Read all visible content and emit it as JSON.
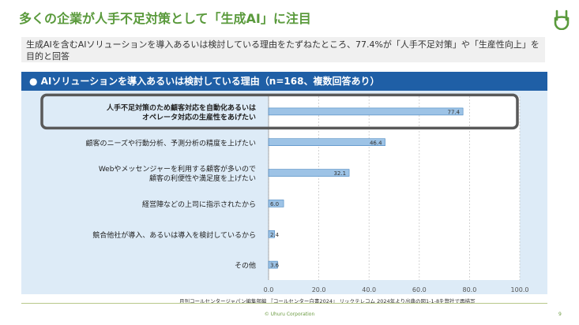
{
  "slide": {
    "title": "多くの企業が人手不足対策として「生成AI」に注目",
    "summary": "生成AIを含むAIソリューションを導入あるいは検討している理由をたずねたところ、77.4%が「人手不足対策」や「生産性向上」を目的と回答",
    "panel_title": "● AIソリューションを導入あるいは検討している理由（n=168、複数回答あり）",
    "source": "月刊コールセンタージャパン編集部編 『コールセンター白書2024』 リックテレコム 2024年より出典の図1-1-8を弊社で再描写",
    "copyright": "© Uhuru Corporation",
    "page_number": "9"
  },
  "chart_data": {
    "type": "bar",
    "orientation": "horizontal",
    "categories": [
      [
        "人手不足対策のため顧客対応を自動化あるいは",
        "オペレータ対応の生産性をあげたい"
      ],
      [
        "顧客のニーズや行動分析、予測分析の精度を上げたい"
      ],
      [
        "Webやメッセンジャーを利用する顧客が多いので",
        "顧客の利便性や満足度を上げたい"
      ],
      [
        "経営陣などの上司に指示されたから"
      ],
      [
        "競合他社が導入、あるいは導入を検討しているから"
      ],
      [
        "その他"
      ]
    ],
    "values": [
      77.4,
      46.4,
      32.1,
      6.0,
      2.4,
      3.6
    ],
    "value_labels": [
      "77.4",
      "46.4",
      "32.1",
      "6.0",
      "2.4",
      "3.6"
    ],
    "xlim": [
      0,
      100
    ],
    "xticks": [
      "0.0",
      "20.0",
      "40.0",
      "60.0",
      "80.0",
      "100.0"
    ],
    "highlight_index": 0,
    "grid": true,
    "colors": {
      "bar": "#9dc3e6",
      "bar_stroke": "#2e75b6",
      "highlight": "#595959",
      "plot_bg": "#ffffff",
      "panel_bg": "#ddebf7"
    }
  }
}
